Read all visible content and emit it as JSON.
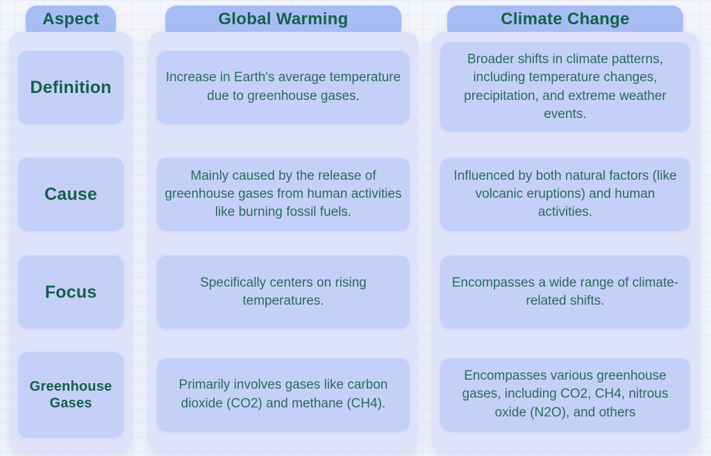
{
  "columns": [
    {
      "header": "Aspect",
      "cells": [
        "Definition",
        "Cause",
        "Focus",
        "Greenhouse Gases"
      ]
    },
    {
      "header": "Global Warming",
      "cells": [
        "Increase in Earth's average temperature due to greenhouse gases.",
        "Mainly caused by the release of greenhouse gases from human activities like burning fossil fuels.",
        "Specifically centers on rising temperatures.",
        "Primarily involves gases like carbon dioxide (CO2) and methane (CH4)."
      ]
    },
    {
      "header": "Climate Change",
      "cells": [
        "Broader shifts in climate patterns, including temperature changes, precipitation, and extreme weather events.",
        "Influenced by both natural factors (like volcanic eruptions) and human activities.",
        "Encompasses a wide range of climate-related shifts.",
        "Encompasses various greenhouse gases, including CO2, CH4, nitrous oxide (N2O), and others"
      ]
    }
  ],
  "colors": {
    "page_bg": "#f3f5fb",
    "grid_line": "#e7ebf8",
    "header_bg": "#a8bdf4",
    "panel_bg": "#dee3fa",
    "card_bg": "#c5d0f8",
    "header_text": "#15604a",
    "body_text": "#2a6b5e"
  }
}
